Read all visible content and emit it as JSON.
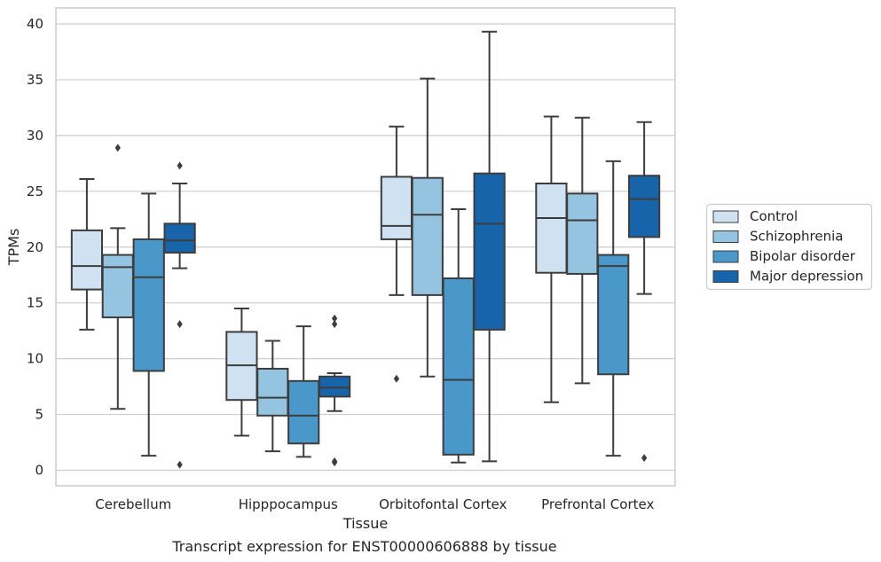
{
  "chart_data": {
    "type": "box",
    "title": "",
    "caption": "Transcript expression for ENST00000606888 by tissue",
    "xlabel": "Tissue",
    "ylabel": "TPMs",
    "ylim": [
      -1.3,
      41.3
    ],
    "yticks": [
      0,
      5,
      10,
      15,
      20,
      25,
      30,
      35,
      40
    ],
    "grid": "horizontal",
    "legend_position": "right-center",
    "categories": [
      "Cerebellum",
      "Hipppocampus",
      "Orbitofontal Cortex",
      "Prefrontal Cortex"
    ],
    "series": [
      {
        "name": "Control",
        "color": "#d0e1f2",
        "boxes": [
          {
            "whisker_low": 12.6,
            "q1": 16.2,
            "median": 18.3,
            "q3": 21.5,
            "whisker_high": 26.1,
            "outliers": []
          },
          {
            "whisker_low": 3.1,
            "q1": 6.3,
            "median": 9.4,
            "q3": 12.4,
            "whisker_high": 14.5,
            "outliers": []
          },
          {
            "whisker_low": 15.7,
            "q1": 20.7,
            "median": 21.9,
            "q3": 26.3,
            "whisker_high": 30.8,
            "outliers": [
              8.2
            ]
          },
          {
            "whisker_low": 6.1,
            "q1": 17.7,
            "median": 22.6,
            "q3": 25.7,
            "whisker_high": 31.7,
            "outliers": []
          }
        ]
      },
      {
        "name": "Schizophrenia",
        "color": "#94c4df",
        "boxes": [
          {
            "whisker_low": 5.5,
            "q1": 13.7,
            "median": 18.2,
            "q3": 19.3,
            "whisker_high": 21.7,
            "outliers": [
              28.9
            ]
          },
          {
            "whisker_low": 1.7,
            "q1": 4.9,
            "median": 6.5,
            "q3": 9.1,
            "whisker_high": 11.6,
            "outliers": []
          },
          {
            "whisker_low": 8.4,
            "q1": 15.7,
            "median": 22.9,
            "q3": 26.2,
            "whisker_high": 35.1,
            "outliers": []
          },
          {
            "whisker_low": 7.8,
            "q1": 17.6,
            "median": 22.4,
            "q3": 24.8,
            "whisker_high": 31.6,
            "outliers": []
          }
        ]
      },
      {
        "name": "Bipolar disorder",
        "color": "#4a98c9",
        "boxes": [
          {
            "whisker_low": 1.3,
            "q1": 8.9,
            "median": 17.3,
            "q3": 20.7,
            "whisker_high": 24.8,
            "outliers": []
          },
          {
            "whisker_low": 1.2,
            "q1": 2.4,
            "median": 4.9,
            "q3": 8.0,
            "whisker_high": 12.9,
            "outliers": []
          },
          {
            "whisker_low": 0.7,
            "q1": 1.4,
            "median": 8.1,
            "q3": 17.2,
            "whisker_high": 23.4,
            "outliers": []
          },
          {
            "whisker_low": 1.3,
            "q1": 8.6,
            "median": 18.3,
            "q3": 19.3,
            "whisker_high": 27.7,
            "outliers": []
          }
        ]
      },
      {
        "name": "Major depression",
        "color": "#1764ab",
        "boxes": [
          {
            "whisker_low": 18.1,
            "q1": 19.5,
            "median": 20.6,
            "q3": 22.1,
            "whisker_high": 25.7,
            "outliers": [
              27.3,
              13.1,
              0.5
            ]
          },
          {
            "whisker_low": 5.3,
            "q1": 6.6,
            "median": 7.4,
            "q3": 8.4,
            "whisker_high": 8.7,
            "outliers": [
              13.6,
              13.1,
              0.8,
              0.7
            ]
          },
          {
            "whisker_low": 0.8,
            "q1": 12.6,
            "median": 22.1,
            "q3": 26.6,
            "whisker_high": 39.3,
            "outliers": []
          },
          {
            "whisker_low": 15.8,
            "q1": 20.9,
            "median": 24.3,
            "q3": 26.4,
            "whisker_high": 31.2,
            "outliers": [
              1.1
            ]
          }
        ]
      }
    ]
  },
  "colors": {
    "axes_edge": "#cccccc",
    "grid": "#cccccc",
    "box_edge": "#3d3d3d",
    "text": "#262626"
  }
}
